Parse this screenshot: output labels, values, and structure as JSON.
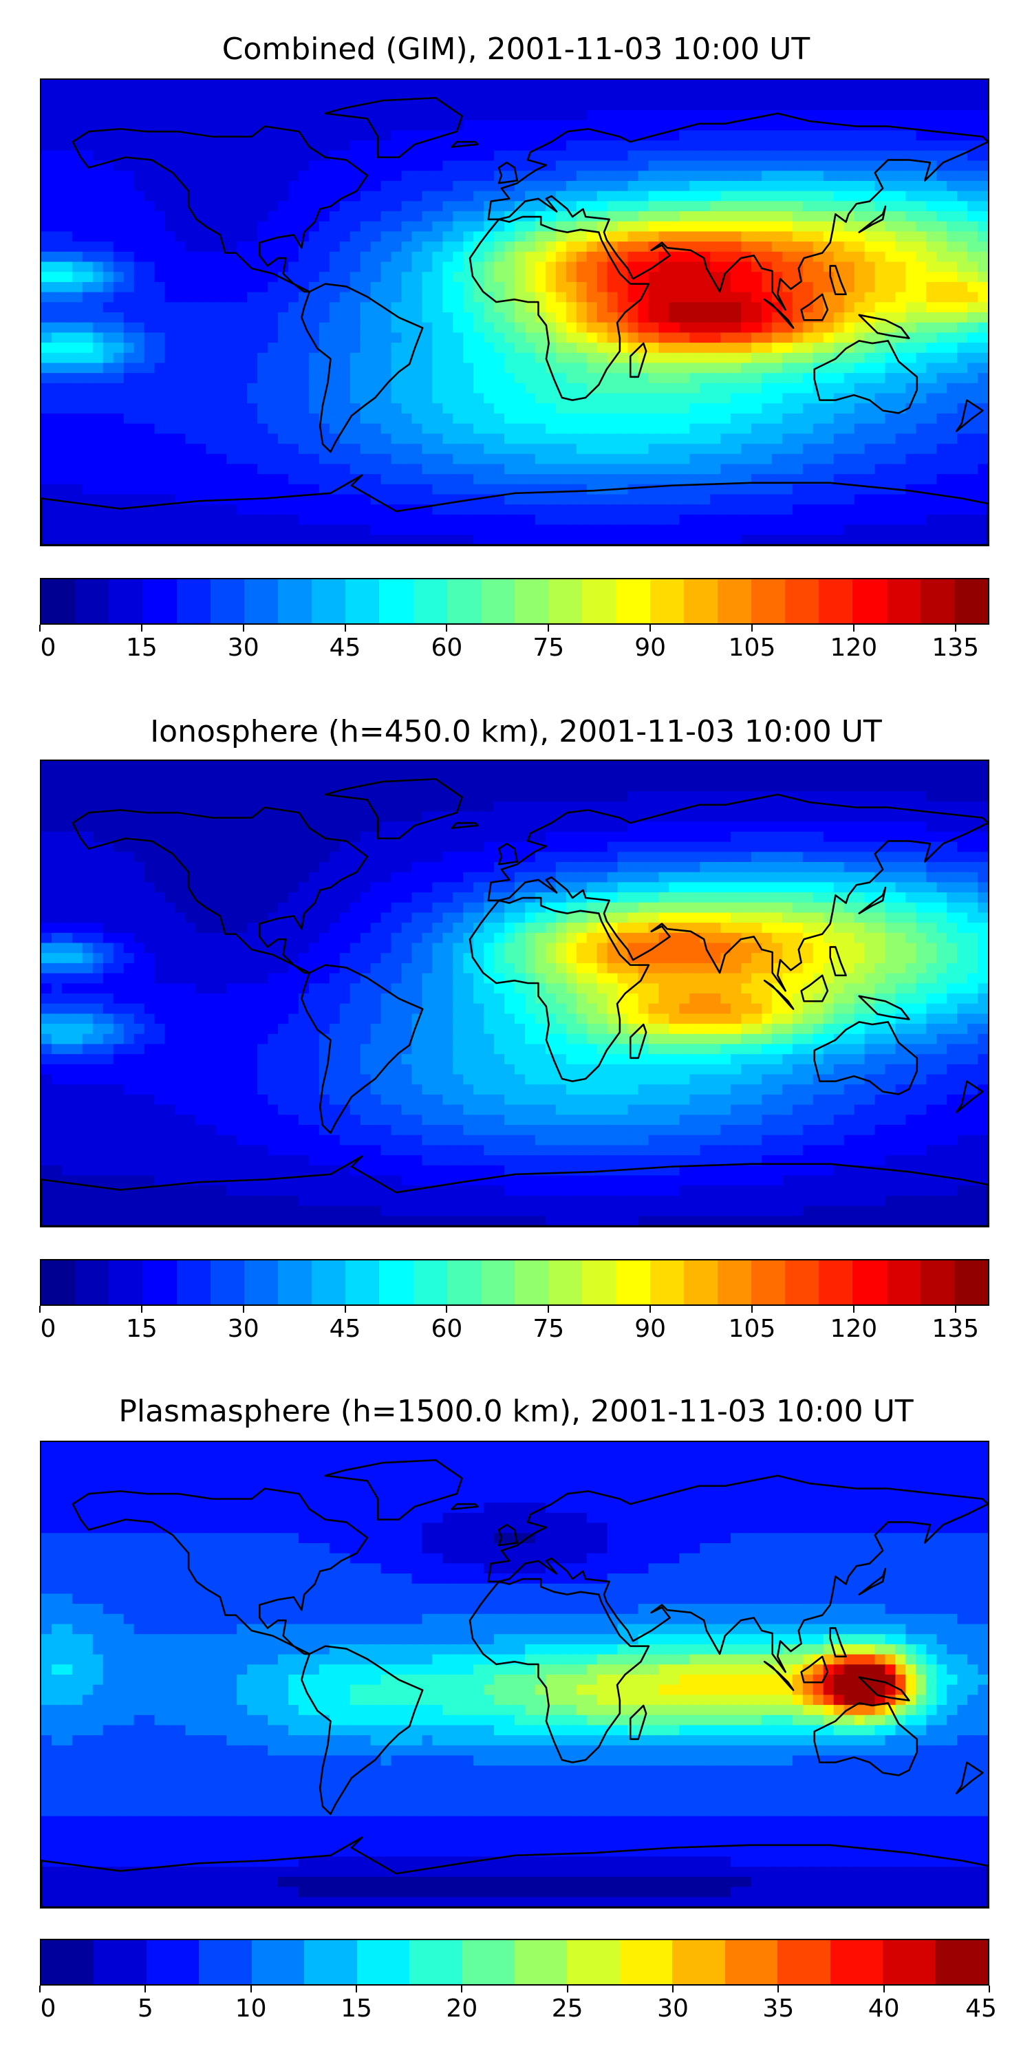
{
  "panels": [
    {
      "title": "Combined (GIM), 2001-11-03 10:00 UT",
      "colorbar": {
        "min": 0,
        "max": 140,
        "levels": 28,
        "tick_labels": [
          "0",
          "15",
          "30",
          "45",
          "60",
          "75",
          "90",
          "105",
          "120",
          "135"
        ],
        "tick_values": [
          0,
          15,
          30,
          45,
          60,
          75,
          90,
          105,
          120,
          135
        ]
      },
      "field": "combined"
    },
    {
      "title": "Ionosphere  (h=450.0 km), 2001-11-03 10:00 UT",
      "colorbar": {
        "min": 0,
        "max": 140,
        "levels": 28,
        "tick_labels": [
          "0",
          "15",
          "30",
          "45",
          "60",
          "75",
          "90",
          "105",
          "120",
          "135"
        ],
        "tick_values": [
          0,
          15,
          30,
          45,
          60,
          75,
          90,
          105,
          120,
          135
        ]
      },
      "field": "ionosphere"
    },
    {
      "title": "Plasmasphere (h=1500.0 km), 2001-11-03 10:00 UT",
      "colorbar": {
        "min": 0,
        "max": 45,
        "levels": 18,
        "tick_labels": [
          "0",
          "5",
          "10",
          "15",
          "20",
          "25",
          "30",
          "35",
          "40",
          "45"
        ],
        "tick_values": [
          0,
          5,
          10,
          15,
          20,
          25,
          30,
          35,
          40,
          45
        ]
      },
      "field": "plasmasphere"
    }
  ],
  "colormap": "jet",
  "coastline_color": "#000000"
}
